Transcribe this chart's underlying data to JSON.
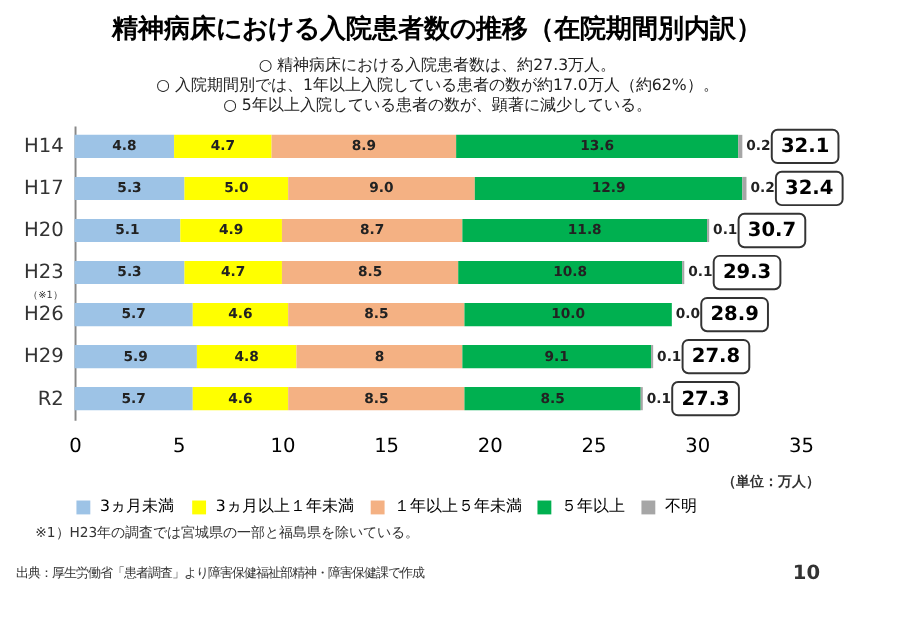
{
  "chart_data": {
    "type": "bar",
    "orientation": "horizontal",
    "stacked": true,
    "title": "精神病床における入院患者数の推移（在院期間別内訳）",
    "subtitle": [
      "○ 精神病床における入院患者数は、約27.3万人。",
      "○ 入院期間別では、1年以上入院している患者の数が約17.0万人（約62%）。",
      "○ 5年以上入院している患者の数が、顕著に減少している。"
    ],
    "categories": [
      "H14",
      "H17",
      "H20",
      "H23",
      "H26",
      "H29",
      "R2"
    ],
    "series": [
      {
        "name": "3ヵ月未満",
        "color": "#9dc3e6",
        "values": [
          4.8,
          5.3,
          5.1,
          5.3,
          5.7,
          5.9,
          5.7
        ],
        "value_labels": [
          "4.8",
          "5.3",
          "5.1",
          "5.3",
          "5.7",
          "5.9",
          "5.7"
        ]
      },
      {
        "name": "3ヵ月以上１年未満",
        "color": "#ffff00",
        "values": [
          4.7,
          5.0,
          4.9,
          4.7,
          4.6,
          4.8,
          4.6
        ],
        "value_labels": [
          "4.7",
          "5.0",
          "4.9",
          "4.7",
          "4.6",
          "4.8",
          "4.6"
        ]
      },
      {
        "name": "１年以上５年未満",
        "color": "#f4b183",
        "values": [
          8.9,
          9.0,
          8.7,
          8.5,
          8.5,
          8,
          8.5
        ],
        "value_labels": [
          "8.9",
          "9.0",
          "8.7",
          "8.5",
          "8.5",
          "8",
          "8.5"
        ]
      },
      {
        "name": "５年以上",
        "color": "#00b050",
        "values": [
          13.6,
          12.9,
          11.8,
          10.8,
          10.0,
          9.1,
          8.5
        ],
        "value_labels": [
          "13.6",
          "12.9",
          "11.8",
          "10.8",
          "10.0",
          "9.1",
          "8.5"
        ]
      },
      {
        "name": "不明",
        "color": "#a6a6a6",
        "values": [
          0.2,
          0.2,
          0.1,
          0.1,
          0.0,
          0.1,
          0.1
        ],
        "value_labels": [
          "0.2",
          "0.2",
          "0.1",
          "0.1",
          "0.0",
          "0.1",
          "0.1"
        ]
      }
    ],
    "totals": [
      "32.1",
      "32.4",
      "30.7",
      "29.3",
      "28.9",
      "27.8",
      "27.3"
    ],
    "xlim": [
      0,
      35
    ],
    "xticks": [
      0,
      5,
      10,
      15,
      20,
      25,
      30,
      35
    ],
    "grid": false,
    "legend": "bottom",
    "annotations": [
      "（※1）",
      "（単位：万人）",
      "※1）H23年の調査では宮城県の一部と福島県を除いている。",
      "出典：厚生労働省「患者調査」より障害保健福祉部精神・障害保健課で作成",
      "10"
    ]
  }
}
